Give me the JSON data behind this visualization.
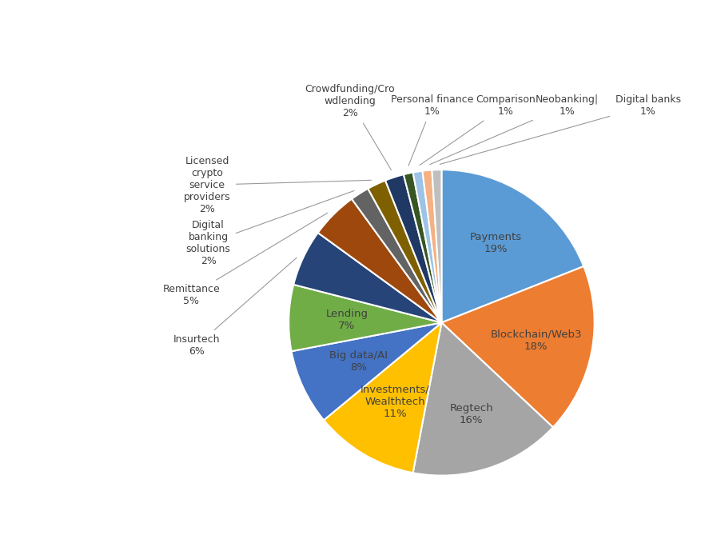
{
  "labels": [
    "Payments",
    "Blockchain/Web3",
    "Regtech",
    "Investments/\nWealthtech",
    "Big data/AI",
    "Lending",
    "Insurtech",
    "Remittance",
    "Digital\nbanking\nsolutions",
    "Licensed\ncrypto\nservice\nproviders",
    "Crowdfunding/Cro\nwdlending",
    "Personal finance",
    "Comparison",
    "Neobanking|",
    "Digital banks"
  ],
  "values": [
    19,
    18,
    16,
    11,
    8,
    7,
    6,
    5,
    2,
    2,
    2,
    1,
    1,
    1,
    1
  ],
  "colors": [
    "#5B9BD5",
    "#ED7D31",
    "#A5A5A5",
    "#FFC000",
    "#4472C4",
    "#70AD47",
    "#264478",
    "#9E480E",
    "#636363",
    "#7F6000",
    "#1F3864",
    "#375623",
    "#9DC3E6",
    "#F4B183",
    "#BFBFBF"
  ],
  "background_color": "#FFFFFF",
  "internal_labels": {
    "0": "Payments\n19%",
    "1": "Blockchain/Web3\n18%",
    "2": "Regtech\n16%",
    "3": "Investments/\nWealthtech\n11%",
    "4": "Big data/AI\n8%",
    "5": "Lending\n7%"
  },
  "internal_r": {
    "0": 0.63,
    "1": 0.63,
    "2": 0.63,
    "3": 0.6,
    "4": 0.6,
    "5": 0.62
  },
  "external_info": [
    [
      6,
      "Insurtech\n6%",
      -1.45,
      -0.15,
      "right"
    ],
    [
      7,
      "Remittance\n5%",
      -1.45,
      0.18,
      "right"
    ],
    [
      8,
      "Digital\nbanking\nsolutions\n2%",
      -1.38,
      0.52,
      "right"
    ],
    [
      9,
      "Licensed\ncrypto\nservice\nproviders\n2%",
      -1.38,
      0.9,
      "right"
    ],
    [
      10,
      "Crowdfunding/Cro\nwdlending\n2%",
      -0.6,
      1.45,
      "center"
    ],
    [
      11,
      "Personal finance\n1%",
      -0.06,
      1.42,
      "center"
    ],
    [
      12,
      "Comparison\n1%",
      0.42,
      1.42,
      "center"
    ],
    [
      13,
      "Neobanking|\n1%",
      0.82,
      1.42,
      "center"
    ],
    [
      14,
      "Digital banks\n1%",
      1.35,
      1.42,
      "center"
    ]
  ],
  "text_color": "#404040",
  "line_color": "#999999"
}
